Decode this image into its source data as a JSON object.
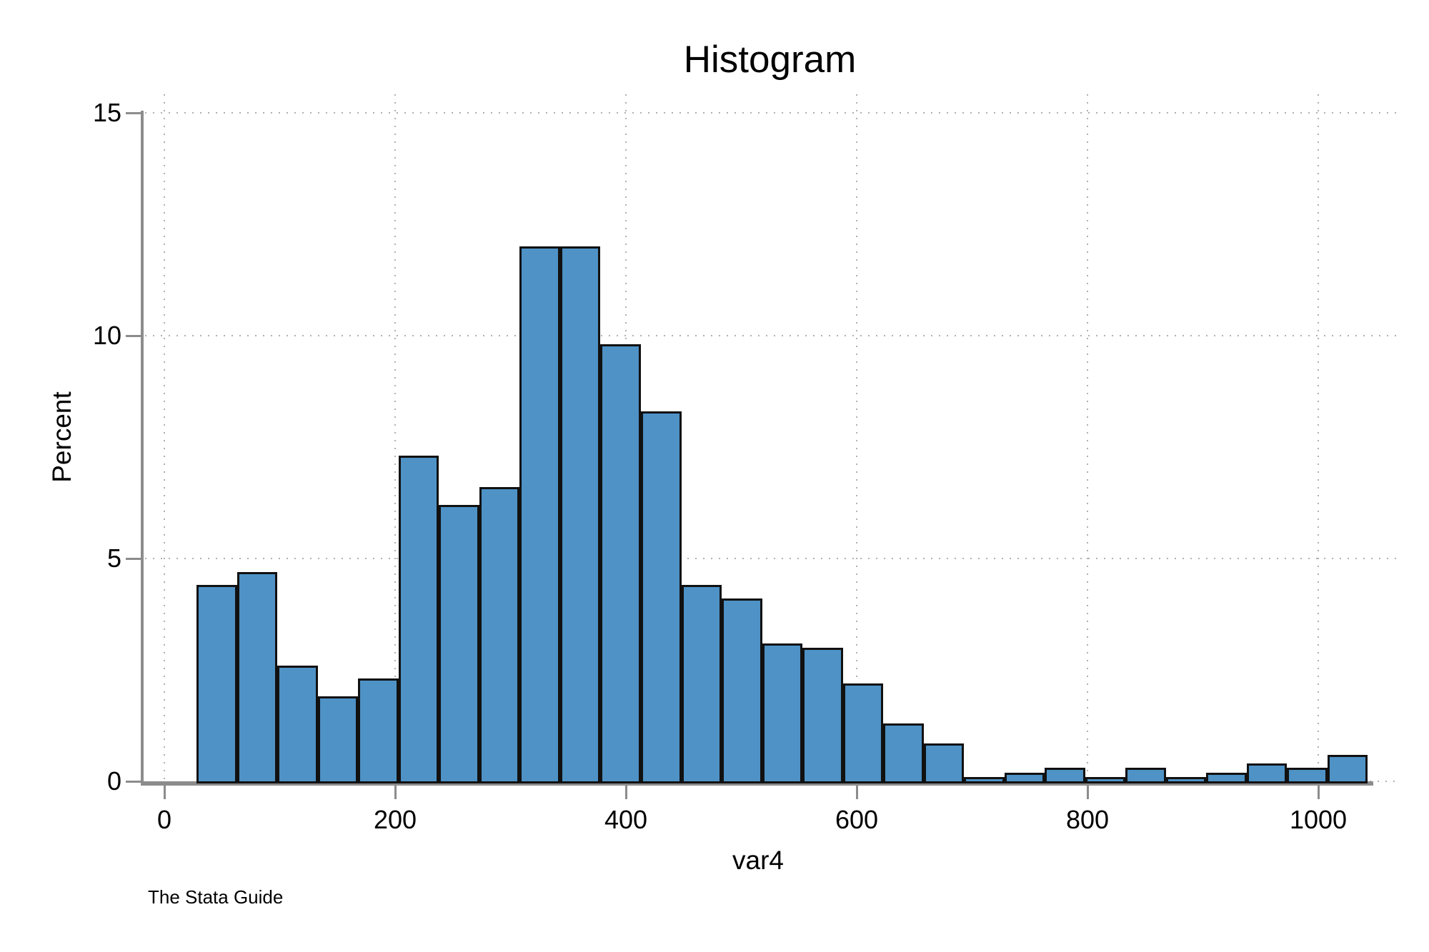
{
  "title": "Histogram",
  "watermark": "The Stata Guide",
  "chart_data": {
    "type": "bar",
    "subtype": "histogram",
    "title": "Histogram",
    "xlabel": "var4",
    "ylabel": "Percent",
    "x_ticks": [
      0,
      200,
      400,
      600,
      800,
      1000
    ],
    "y_ticks": [
      0,
      5,
      10,
      15
    ],
    "xlim": [
      0,
      1070
    ],
    "ylim": [
      0,
      15
    ],
    "grid": "dotted",
    "legend": "none",
    "bin_start": 28,
    "bin_width": 35,
    "values": [
      4.4,
      4.7,
      2.6,
      1.9,
      2.3,
      7.3,
      6.2,
      6.6,
      12,
      12,
      9.8,
      8.3,
      4.4,
      4.1,
      3.1,
      3,
      2.2,
      1.3,
      0.85,
      0.1,
      0.2,
      0.3,
      0.1,
      0.3,
      0.1,
      0.2,
      0.4,
      0.3,
      0.6
    ],
    "colors": {
      "bar_fill": "#4e92c6",
      "bar_border": "#111111",
      "axis": "#8c8c8c",
      "grid": "#b0b0b0",
      "text": "#000000",
      "background": "#ffffff"
    }
  }
}
